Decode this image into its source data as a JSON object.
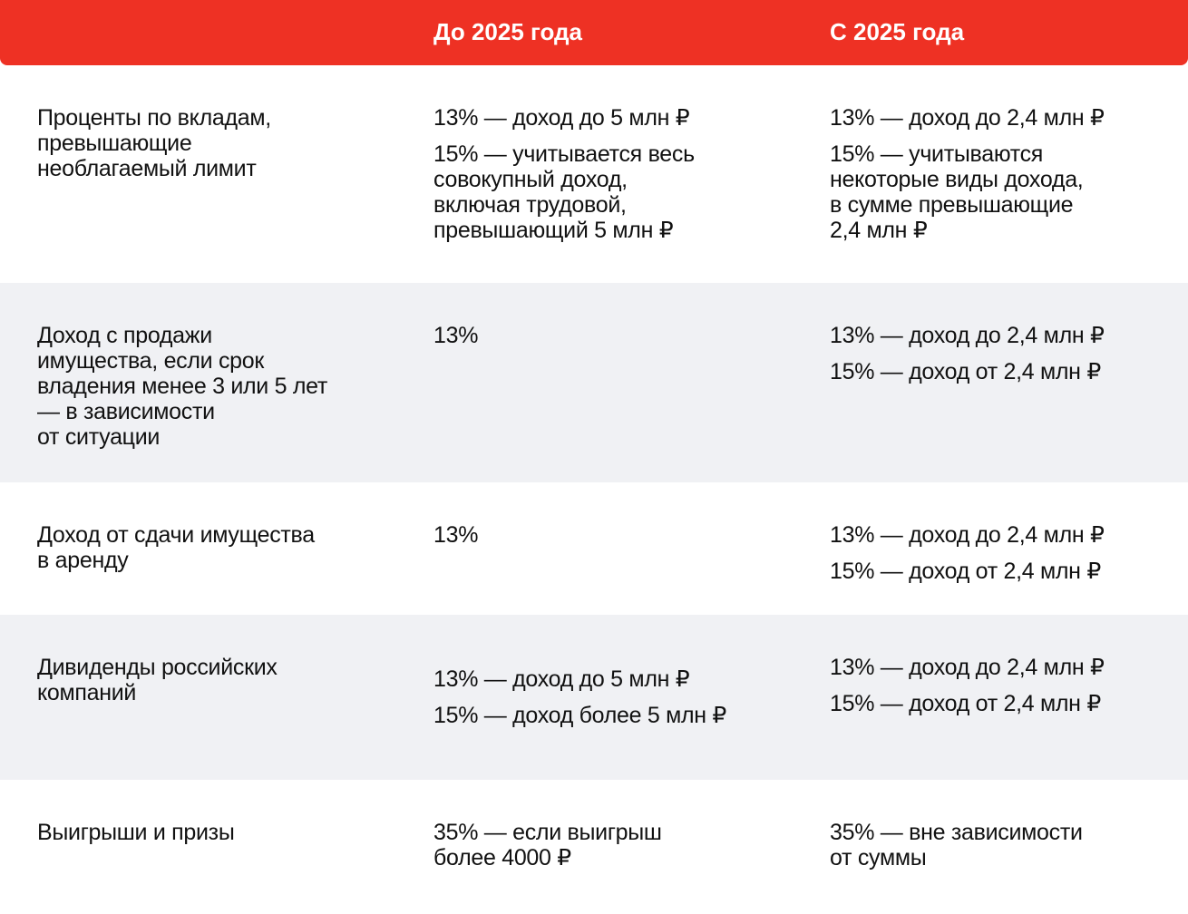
{
  "table": {
    "columns": [
      "До 2025 года",
      "С 2025 года"
    ],
    "rows": [
      {
        "label": [
          "Проценты по вкладам,",
          "превышающие",
          "необлагаемый лимит"
        ],
        "before": [
          [
            "13% — доход до 5 млн ₽"
          ],
          [
            "15% — учитывается весь",
            "совокупный доход,",
            "включая трудовой,",
            "превышающий 5 млн ₽"
          ]
        ],
        "after": [
          [
            "13% — доход до 2,4 млн ₽"
          ],
          [
            "15% — учитываются",
            "некоторые виды дохода,",
            "в сумме превышающие",
            "2,4 млн ₽"
          ]
        ]
      },
      {
        "label": [
          "Доход с продажи",
          "имущества, если срок",
          "владения менее 3 или 5 лет",
          "— в зависимости",
          "от ситуации"
        ],
        "before": [
          [
            "13%"
          ]
        ],
        "after": [
          [
            "13% — доход до 2,4 млн ₽"
          ],
          [
            "15% — доход от 2,4 млн ₽"
          ]
        ]
      },
      {
        "label": [
          "Доход от сдачи имущества",
          "в аренду"
        ],
        "before": [
          [
            "13%"
          ]
        ],
        "after": [
          [
            "13% — доход до 2,4 млн ₽"
          ],
          [
            "15% — доход от 2,4 млн ₽"
          ]
        ]
      },
      {
        "label": [
          "Дивиденды российских",
          "компаний"
        ],
        "before": [
          [
            "13% — доход до 5 млн ₽"
          ],
          [
            "15% — доход более 5 млн ₽"
          ]
        ],
        "after": [
          [
            "13% — доход до 2,4 млн ₽"
          ],
          [
            "15% — доход от 2,4 млн ₽"
          ]
        ]
      },
      {
        "label": [
          "Выигрыши и призы"
        ],
        "before": [
          [
            "35% — если выигрыш",
            "более 4000 ₽"
          ]
        ],
        "after": [
          [
            "35% — вне зависимости",
            "от суммы"
          ]
        ]
      }
    ]
  }
}
